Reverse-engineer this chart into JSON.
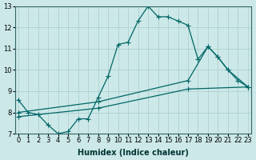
{
  "title": "",
  "xlabel": "Humidex (Indice chaleur)",
  "bg_color": "#cce8e8",
  "grid_color": "#aacccc",
  "line_color": "#006666",
  "xmin": 0,
  "xmax": 23,
  "ymin": 7,
  "ymax": 13,
  "line1_x": [
    0,
    1,
    2,
    3,
    4,
    5,
    6,
    7,
    8,
    9,
    10,
    11,
    12,
    13,
    14,
    15,
    16,
    17,
    18,
    19,
    20,
    21,
    22,
    23
  ],
  "line1_y": [
    8.6,
    8.0,
    7.9,
    7.4,
    7.0,
    7.1,
    7.7,
    7.7,
    8.7,
    9.7,
    11.2,
    11.3,
    12.3,
    13.0,
    12.5,
    12.5,
    12.3,
    12.1,
    10.5,
    11.1,
    10.6,
    10.0,
    9.5,
    9.2
  ],
  "line2_x": [
    0,
    8,
    17,
    19,
    20,
    21,
    23
  ],
  "line2_y": [
    8.0,
    8.5,
    9.5,
    11.1,
    10.6,
    10.0,
    9.2
  ],
  "line3_x": [
    0,
    8,
    17,
    23
  ],
  "line3_y": [
    7.8,
    8.2,
    9.1,
    9.2
  ],
  "marker_style": "P",
  "marker_size": 2.8,
  "line_width": 0.9,
  "font_size_label": 7,
  "font_size_tick": 6
}
